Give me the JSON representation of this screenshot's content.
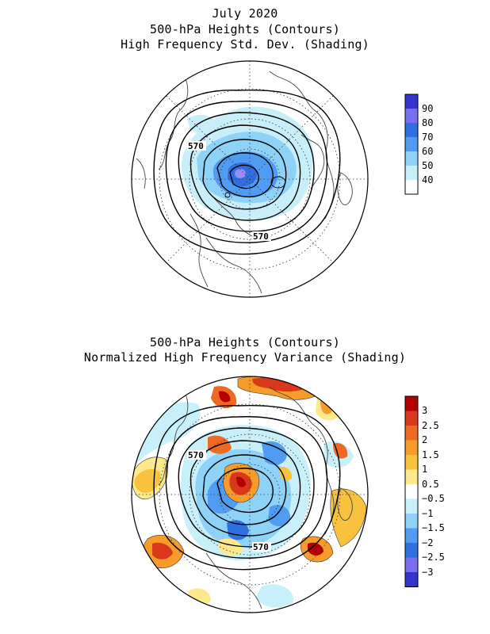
{
  "panel_top": {
    "title_lines": [
      "July 2020",
      "500-hPa Heights (Contours)",
      "High Frequency Std. Dev. (Shading)"
    ],
    "contour_label_1": "570",
    "contour_label_2": "570",
    "colorbar": {
      "labels": [
        "90",
        "80",
        "70",
        "60",
        "50",
        "40"
      ],
      "colors": [
        "#3333cc",
        "#7a6ef0",
        "#2f6fe0",
        "#4f9cf2",
        "#8fd2f7",
        "#c8eefa",
        "#ffffff"
      ]
    }
  },
  "panel_bottom": {
    "title_lines": [
      "500-hPa Heights (Contours)",
      "Normalized High Frequency Variance (Shading)"
    ],
    "contour_label_1": "570",
    "contour_label_2": "570",
    "colorbar": {
      "labels": [
        "3",
        "2.5",
        "2",
        "1.5",
        "1",
        "0.5",
        "−0.5",
        "−1",
        "−1.5",
        "−2",
        "−2.5",
        "−3"
      ],
      "colors": [
        "#b30000",
        "#d9391a",
        "#ee6a22",
        "#f59c2a",
        "#f9c23e",
        "#fde98c",
        "#ffffff",
        "#c8f0fa",
        "#8fd2f7",
        "#4f9cf2",
        "#2f6fe0",
        "#7a6ef0",
        "#3333cc"
      ]
    }
  }
}
